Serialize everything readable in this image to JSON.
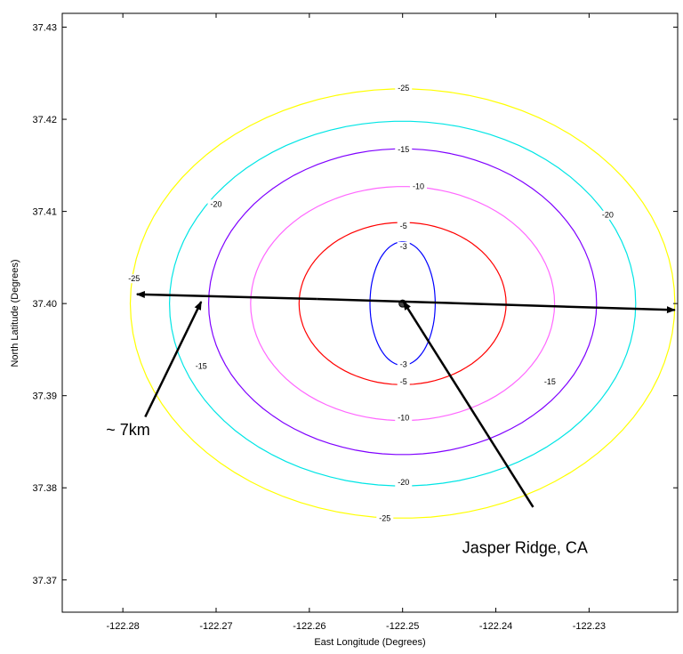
{
  "chart_data": {
    "type": "contour",
    "xlabel": "East Longitude (Degrees)",
    "ylabel": "North Latitude (Degrees)",
    "xlim": [
      -122.2865,
      -122.2205
    ],
    "ylim": [
      37.3665,
      37.4315
    ],
    "x_ticks": [
      -122.28,
      -122.27,
      -122.26,
      -122.25,
      -122.24,
      -122.23
    ],
    "x_tick_labels": [
      "-122.28",
      "-122.27",
      "-122.26",
      "-122.25",
      "-122.24",
      "-122.23"
    ],
    "y_ticks": [
      37.37,
      37.38,
      37.39,
      37.4,
      37.41,
      37.42,
      37.43
    ],
    "y_tick_labels": [
      "37.37",
      "37.38",
      "37.39",
      "37.40",
      "37.41",
      "37.42",
      "37.43"
    ],
    "grid": false,
    "center": [
      -122.25,
      37.4
    ],
    "contours": [
      {
        "level": "-3",
        "color": "#0000ff",
        "rx": 0.0035,
        "ry_top": 0.0067,
        "ry_bottom": 0.0067
      },
      {
        "level": "-5",
        "color": "#ff0000",
        "rx": 0.0111,
        "ry_top": 0.0088,
        "ry_bottom": 0.0088
      },
      {
        "level": "-10",
        "color": "#ff66ff",
        "rx": 0.0163,
        "ry_top": 0.0127,
        "ry_bottom": 0.0127
      },
      {
        "level": "-15",
        "color": "#7f00ff",
        "rx": 0.0208,
        "ry_top": 0.0168,
        "ry_bottom": 0.0164
      },
      {
        "level": "-20",
        "color": "#00e5e5",
        "rx": 0.025,
        "ry_top": 0.0198,
        "ry_bottom": 0.0198
      },
      {
        "level": "-25",
        "color": "#ffff00",
        "rx": 0.0292,
        "ry_top": 0.0233,
        "ry_bottom": 0.0233
      }
    ],
    "contour_labels": [
      {
        "text": "-3",
        "x": -122.2499,
        "y": 37.4062
      },
      {
        "text": "-3",
        "x": -122.2499,
        "y": 37.3934
      },
      {
        "text": "-5",
        "x": -122.2499,
        "y": 37.4084
      },
      {
        "text": "-5",
        "x": -122.2499,
        "y": 37.3915
      },
      {
        "text": "-10",
        "x": -122.2483,
        "y": 37.4127
      },
      {
        "text": "-10",
        "x": -122.2499,
        "y": 37.3876
      },
      {
        "text": "-15",
        "x": -122.2499,
        "y": 37.4167
      },
      {
        "text": "-15",
        "x": -122.2716,
        "y": 37.3932
      },
      {
        "text": "-15",
        "x": -122.2342,
        "y": 37.3915
      },
      {
        "text": "-20",
        "x": -122.27,
        "y": 37.4108
      },
      {
        "text": "-20",
        "x": -122.228,
        "y": 37.4096
      },
      {
        "text": "-20",
        "x": -122.2499,
        "y": 37.3806
      },
      {
        "text": "-25",
        "x": -122.2499,
        "y": 37.4234
      },
      {
        "text": "-25",
        "x": -122.2788,
        "y": 37.4027
      },
      {
        "text": "-25",
        "x": -122.2519,
        "y": 37.3767
      }
    ],
    "marker": {
      "x": -122.25,
      "y": 37.4
    },
    "annotations": [
      {
        "text": "~ 7km",
        "x": -122.2818,
        "y": 37.3857
      },
      {
        "text": "Jasper Ridge, CA",
        "x": -122.2436,
        "y": 37.3729
      }
    ],
    "arrows": [
      {
        "from": [
          -122.2592,
          37.4005
        ],
        "to": [
          -122.2785,
          37.401
        ]
      },
      {
        "from": [
          -122.2592,
          37.4005
        ],
        "to": [
          -122.2208,
          37.3993
        ]
      },
      {
        "from": [
          -122.2776,
          37.3877
        ],
        "to": [
          -122.2716,
          37.4002
        ]
      },
      {
        "from": [
          -122.236,
          37.3779
        ],
        "to": [
          -122.2499,
          37.4002
        ]
      }
    ]
  }
}
